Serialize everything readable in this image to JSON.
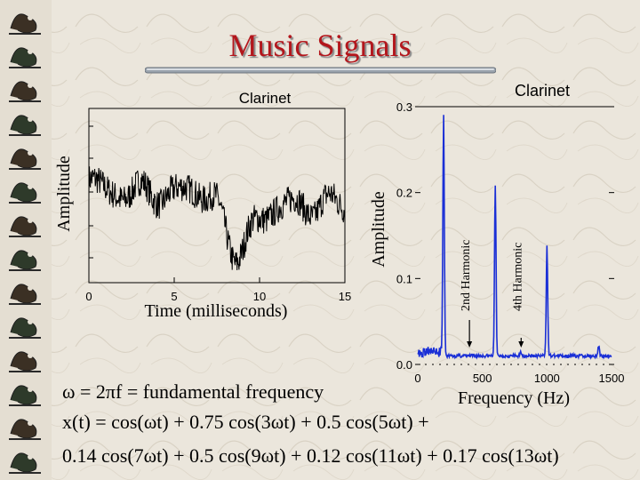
{
  "slide": {
    "title": "Music Signals",
    "equations": [
      "ω = 2πf = fundamental frequency",
      "x(t) = cos(ωt) + 0.75 cos(3ωt) + 0.5 cos(5ωt) +",
      "0.14 cos(7ωt) + 0.5 cos(9ωt) + 0.12 cos(11ωt) + 0.17 cos(13ωt)"
    ]
  },
  "colors": {
    "title": "#b3161c",
    "time_trace": "#000000",
    "spectrum_trace": "#1a2fd6",
    "background": "#ebe6dc"
  },
  "chart_data": [
    {
      "type": "line",
      "title": "Clarinet",
      "xlabel": "Time (milliseconds)",
      "ylabel": "Amplitude",
      "xlim": [
        0,
        15
      ],
      "x_ticks": [
        0,
        5,
        10,
        15
      ],
      "y_ticks_visible": false,
      "grid": false,
      "signal": {
        "frequency_hz": 200,
        "harmonics": [
          1,
          3,
          5,
          7,
          9,
          11,
          13
        ],
        "amplitudes": [
          1,
          0.75,
          0.5,
          0.14,
          0.5,
          0.12,
          0.17
        ]
      }
    },
    {
      "type": "line",
      "title": "Clarinet",
      "xlabel": "Frequency (Hz)",
      "ylabel": "Amplitude",
      "xlim": [
        0,
        1500
      ],
      "ylim": [
        0,
        0.3
      ],
      "x_ticks": [
        0,
        500,
        1000,
        1500
      ],
      "y_ticks": [
        0.0,
        0.1,
        0.2,
        0.3
      ],
      "peaks": [
        {
          "x": 200,
          "y": 0.28
        },
        {
          "x": 600,
          "y": 0.2
        },
        {
          "x": 800,
          "y": 0.005
        },
        {
          "x": 1000,
          "y": 0.13
        },
        {
          "x": 1400,
          "y": 0.012
        }
      ],
      "annotations": [
        {
          "text": "2nd Harmonic",
          "x": 400
        },
        {
          "text": "4th Harmonic",
          "x": 800
        }
      ]
    }
  ]
}
